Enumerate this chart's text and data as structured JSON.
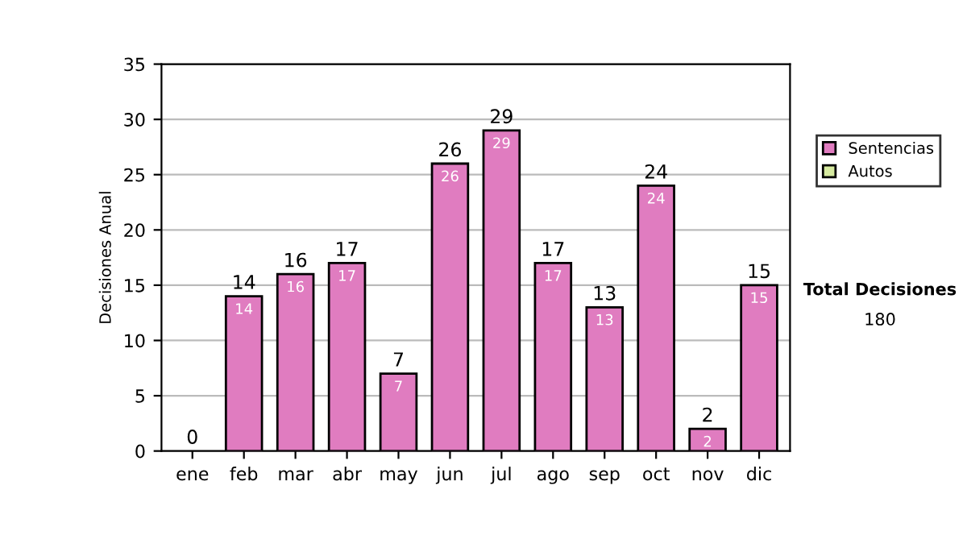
{
  "chart_data": {
    "type": "bar",
    "ylabel": "Decisiones Anual",
    "stacked": true,
    "categories": [
      "ene",
      "feb",
      "mar",
      "abr",
      "may",
      "jun",
      "jul",
      "ago",
      "sep",
      "oct",
      "nov",
      "dic"
    ],
    "series": [
      {
        "name": "Sentencias",
        "color": "#e07cc0",
        "values": [
          0,
          14,
          16,
          17,
          7,
          26,
          29,
          17,
          13,
          24,
          2,
          15
        ],
        "value_labels": [
          null,
          "14",
          "16",
          "17",
          "7",
          "26",
          "29",
          "17",
          "13",
          "24",
          "2",
          "15"
        ]
      },
      {
        "name": "Autos",
        "color": "#d6eaa0",
        "values": [
          null,
          null,
          null,
          null,
          null,
          null,
          null,
          null,
          null,
          null,
          null,
          null
        ]
      }
    ],
    "totals": [
      "0",
      "14",
      "16",
      "17",
      "7",
      "26",
      "29",
      "17",
      "13",
      "24",
      "2",
      "15"
    ],
    "ylim": [
      0,
      35
    ],
    "yticks": [
      0,
      5,
      10,
      15,
      20,
      25,
      30,
      35
    ],
    "grid": "y",
    "legend": "right",
    "annotations": [
      "Total Decisiones",
      "180"
    ]
  }
}
